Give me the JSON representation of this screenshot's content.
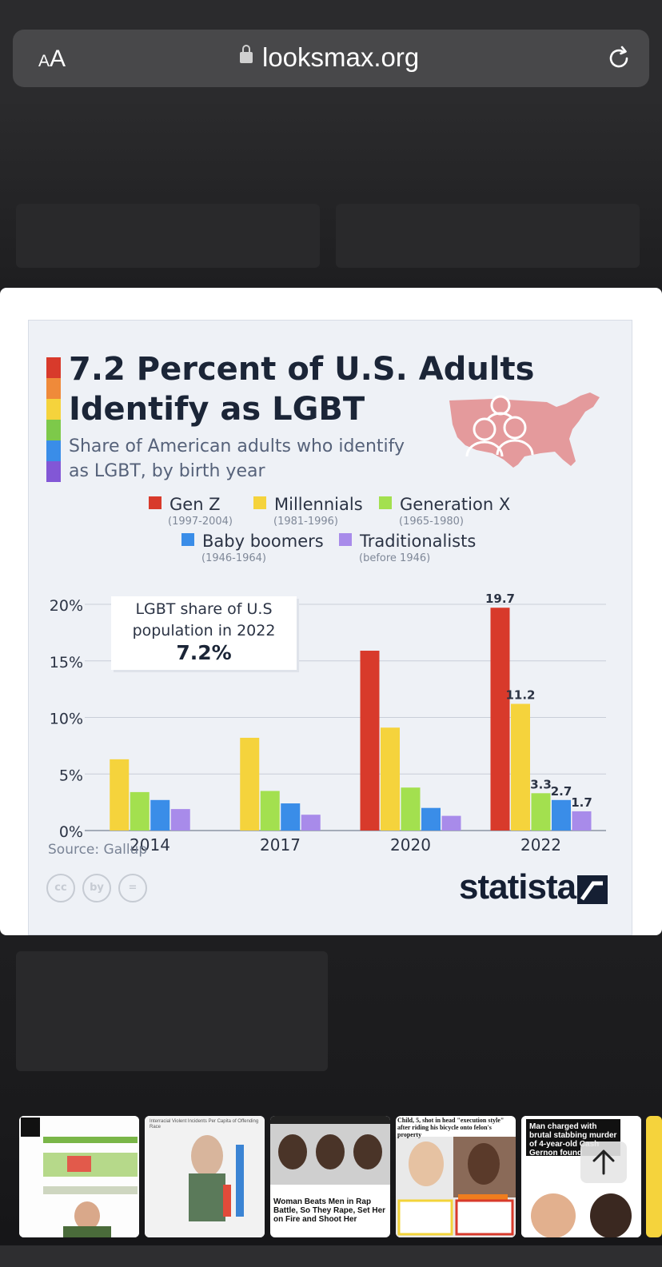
{
  "browser": {
    "aa_small": "A",
    "aa_large": "A",
    "url": "looksmax.org"
  },
  "infographic": {
    "title": "7.2 Percent of U.S. Adults Identify as LGBT",
    "subtitle": "Share of American adults who identify as LGBT, by birth year",
    "callout_line1": "LGBT share of U.S",
    "callout_line2": "population in 2022",
    "callout_value": "7.2%",
    "source": "Source: Gallup",
    "brand": "statista",
    "license_icons": [
      "cc",
      "by",
      "="
    ]
  },
  "chart_data": {
    "type": "bar",
    "title": "7.2 Percent of U.S. Adults Identify as LGBT",
    "categories": [
      "2014",
      "2017",
      "2020",
      "2022"
    ],
    "ylim": [
      0,
      20
    ],
    "yticks": [
      "0%",
      "5%",
      "10%",
      "15%",
      "20%"
    ],
    "ytick_values": [
      0,
      5,
      10,
      15,
      20
    ],
    "grid": true,
    "legend_position": "top",
    "series": [
      {
        "name": "Gen Z",
        "years": "(1997-2004)",
        "color": "#d83a2b",
        "values": [
          null,
          null,
          15.9,
          19.7
        ]
      },
      {
        "name": "Millennials",
        "years": "(1981-1996)",
        "color": "#f5d33c",
        "values": [
          6.3,
          8.2,
          9.1,
          11.2
        ]
      },
      {
        "name": "Generation X",
        "years": "(1965-1980)",
        "color": "#a3e04f",
        "values": [
          3.4,
          3.5,
          3.8,
          3.3
        ]
      },
      {
        "name": "Baby boomers",
        "years": "(1946-1964)",
        "color": "#3a8de8",
        "values": [
          2.7,
          2.4,
          2.0,
          2.7
        ]
      },
      {
        "name": "Traditionalists",
        "years": "(before 1946)",
        "color": "#a88bea",
        "values": [
          1.9,
          1.4,
          1.3,
          1.7
        ]
      }
    ],
    "data_labels": [
      {
        "series": "Gen Z",
        "category": "2022",
        "text": "19.7"
      },
      {
        "series": "Millennials",
        "category": "2022",
        "text": "11.2"
      },
      {
        "series": "Generation X",
        "category": "2022",
        "text": "3.3"
      },
      {
        "series": "Baby boomers",
        "category": "2022",
        "text": "2.7"
      },
      {
        "series": "Traditionalists",
        "category": "2022",
        "text": "1.7"
      }
    ]
  },
  "thumbnails": [
    {
      "caption": ""
    },
    {
      "caption": "Interracial Violent Incidents Per Capita of Offending Race"
    },
    {
      "caption": "Woman Beats Men in Rap Battle, So They Rape, Set Her on Fire and Shoot Her"
    },
    {
      "caption": "Child, 5, shot in head \"execution style\" after riding his bicycle onto felon's property"
    },
    {
      "caption": "Man charged with brutal stabbing murder of 4-year-old Cash Gernon found incompetent to stand trial"
    }
  ],
  "colors": {
    "stripe": [
      "#d83a2b",
      "#ef8a3a",
      "#f5d33c",
      "#7dc94a",
      "#3a8de8",
      "#8257d6"
    ],
    "usa_map": "#e49a9c"
  }
}
